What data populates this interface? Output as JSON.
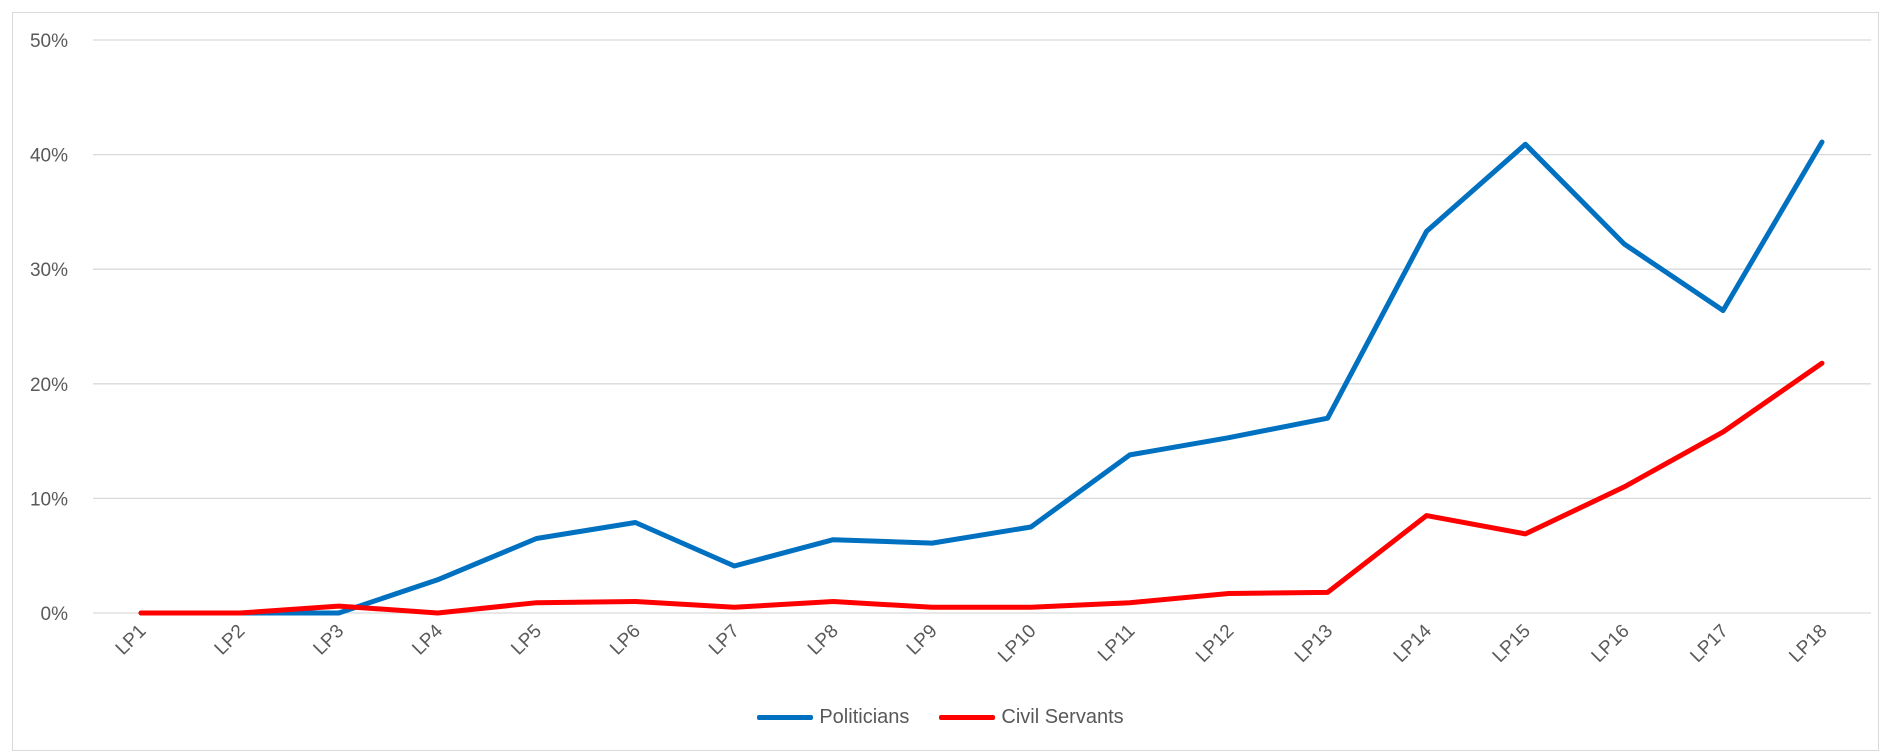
{
  "chart_data": {
    "type": "line",
    "title": "",
    "xlabel": "",
    "ylabel": "",
    "categories": [
      "LP1",
      "LP2",
      "LP3",
      "LP4",
      "LP5",
      "LP6",
      "LP7",
      "LP8",
      "LP9",
      "LP10",
      "LP11",
      "LP12",
      "LP13",
      "LP14",
      "LP15",
      "LP16",
      "LP17",
      "LP18"
    ],
    "ylim": [
      0,
      50
    ],
    "yticks": [
      0,
      10,
      20,
      30,
      40,
      50
    ],
    "ytick_labels": [
      "0%",
      "10%",
      "20%",
      "30%",
      "40%",
      "50%"
    ],
    "grid": true,
    "legend_position": "bottom",
    "series": [
      {
        "name": "Politicians",
        "color": "#0070C0",
        "values": [
          0,
          0,
          0,
          2.9,
          6.5,
          7.9,
          4.1,
          6.4,
          6.1,
          7.5,
          13.8,
          15.3,
          17.0,
          33.3,
          40.9,
          32.2,
          26.4,
          41.1
        ]
      },
      {
        "name": "Civil Servants",
        "color": "#FF0000",
        "values": [
          0,
          0,
          0.6,
          0,
          0.9,
          1.0,
          0.5,
          1.0,
          0.5,
          0.5,
          0.9,
          1.7,
          1.8,
          8.5,
          6.9,
          11.0,
          15.8,
          21.8
        ]
      }
    ]
  }
}
